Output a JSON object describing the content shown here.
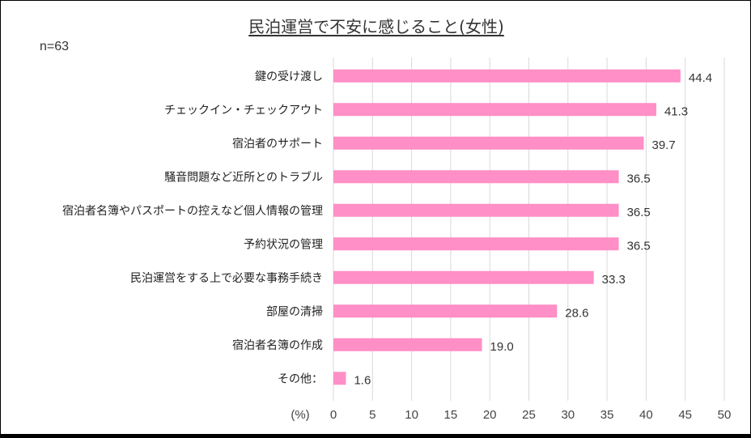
{
  "chart_data": {
    "type": "bar",
    "orientation": "horizontal",
    "title": "民泊運営で不安に感じること(女性)",
    "sample_size": "n=63",
    "unit_label": "(%)",
    "categories": [
      "鍵の受け渡し",
      "チェックイン・チェックアウト",
      "宿泊者のサポート",
      "騒音問題など近所とのトラブル",
      "宿泊者名簿やパスポートの控えなど個人情報の管理",
      "予約状況の管理",
      "民泊運営をする上で必要な事務手続き",
      "部屋の清掃",
      "宿泊者名簿の作成",
      "その他："
    ],
    "values": [
      44.4,
      41.3,
      39.7,
      36.5,
      36.5,
      36.5,
      33.3,
      28.6,
      19.0,
      1.6
    ],
    "value_labels": [
      "44.4",
      "41.3",
      "39.7",
      "36.5",
      "36.5",
      "36.5",
      "33.3",
      "28.6",
      "19.0",
      "1.6"
    ],
    "xlim": [
      0,
      50
    ],
    "ticks": [
      0,
      5,
      10,
      15,
      20,
      25,
      30,
      35,
      40,
      45,
      50
    ],
    "grid": true,
    "legend": "none",
    "bar_color": "#ff8fc6"
  }
}
